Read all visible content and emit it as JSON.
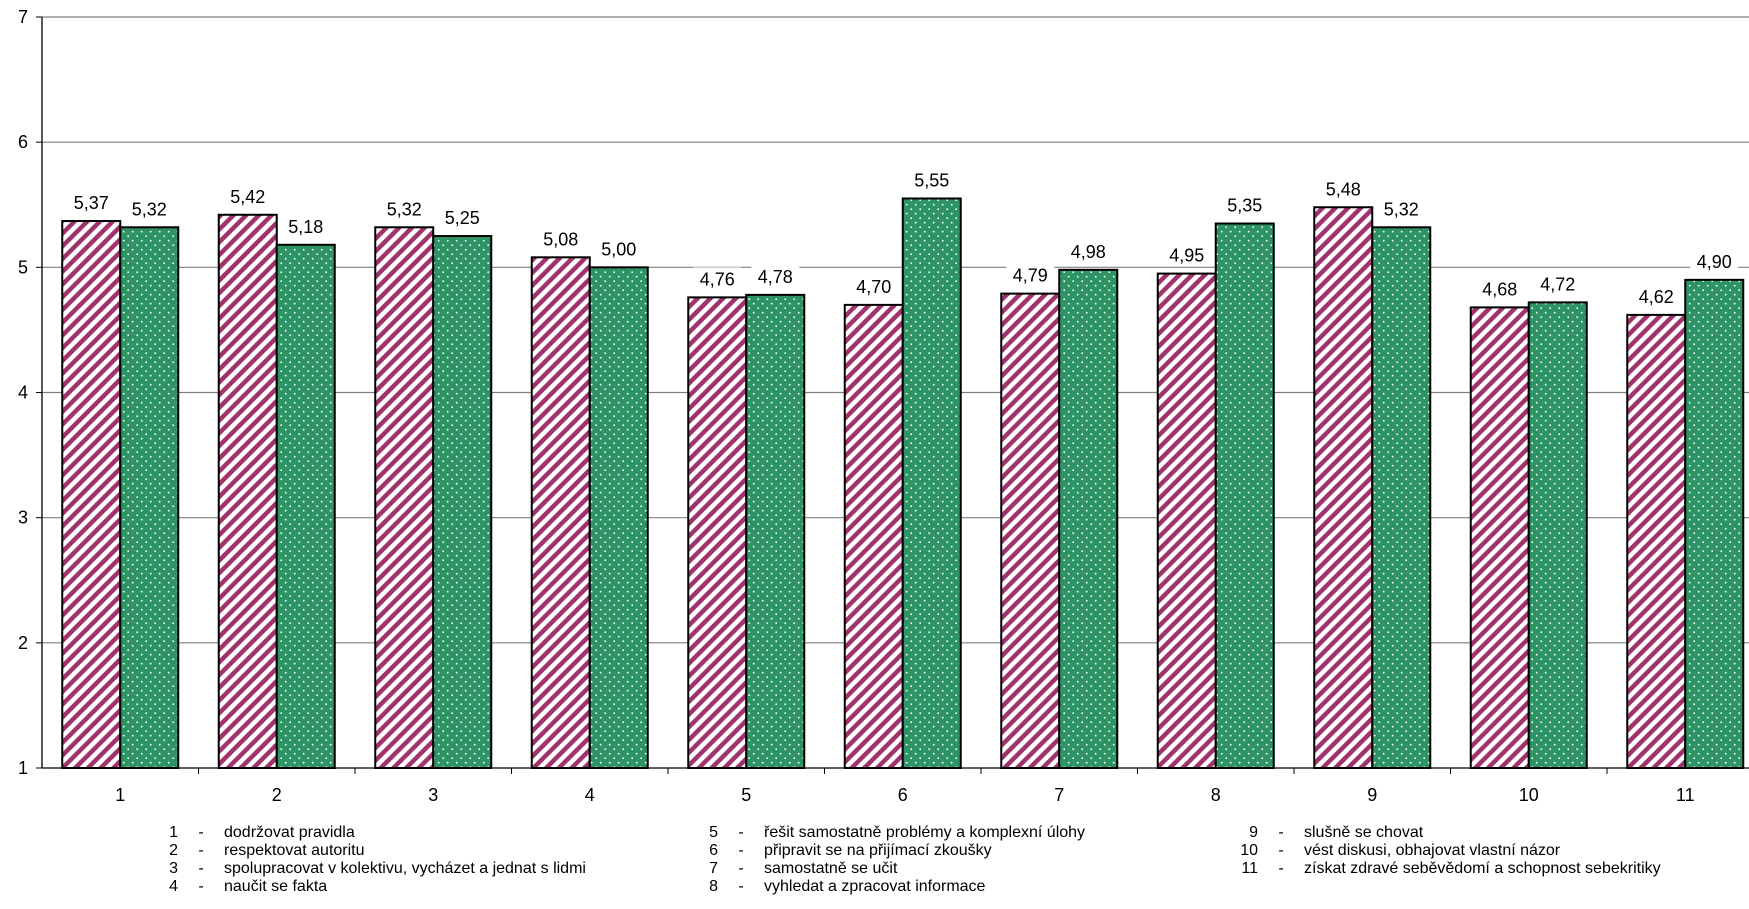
{
  "chart_data": {
    "type": "bar",
    "title": "",
    "xlabel": "",
    "ylabel": "",
    "ylim": [
      1,
      7
    ],
    "yticks": [
      "1",
      "2",
      "3",
      "4",
      "5",
      "6",
      "7"
    ],
    "grid": true,
    "categories": [
      "1",
      "2",
      "3",
      "4",
      "5",
      "6",
      "7",
      "8",
      "9",
      "10",
      "11"
    ],
    "series": [
      {
        "values": [
          5.37,
          5.42,
          5.32,
          5.08,
          4.76,
          4.7,
          4.79,
          4.95,
          5.48,
          4.68,
          4.62
        ],
        "labels": [
          "5,37",
          "5,42",
          "5,32",
          "5,08",
          "4,76",
          "4,70",
          "4,79",
          "4,95",
          "5,48",
          "4,68",
          "4,62"
        ],
        "color": "#a0336e",
        "pattern": "diagonal-stripes"
      },
      {
        "values": [
          5.32,
          5.18,
          5.25,
          5.0,
          4.78,
          5.55,
          4.98,
          5.35,
          5.32,
          4.72,
          4.9
        ],
        "labels": [
          "5,32",
          "5,18",
          "5,25",
          "5,00",
          "4,78",
          "5,55",
          "4,98",
          "5,35",
          "5,32",
          "4,72",
          "4,90"
        ],
        "color": "#2e9466",
        "pattern": "dots"
      }
    ],
    "legend": {
      "placement": "bottom",
      "separator": "-",
      "columns": [
        [
          {
            "num": "1",
            "text": "dodržovat pravidla"
          },
          {
            "num": "2",
            "text": "respektovat autoritu"
          },
          {
            "num": "3",
            "text": "spolupracovat v kolektivu, vycházet a jednat s lidmi"
          },
          {
            "num": "4",
            "text": "naučit se fakta"
          }
        ],
        [
          {
            "num": "5",
            "text": "řešit samostatně problémy a komplexní úlohy"
          },
          {
            "num": "6",
            "text": "připravit se na přijímací zkoušky"
          },
          {
            "num": "7",
            "text": "samostatně se učit"
          },
          {
            "num": "8",
            "text": "vyhledat a zpracovat informace"
          }
        ],
        [
          {
            "num": "9",
            "text": "slušně se chovat"
          },
          {
            "num": "10",
            "text": "vést diskusi, obhajovat vlastní názor"
          },
          {
            "num": "11",
            "text": "získat zdravé seběvědomí a schopnost sebekritiky"
          }
        ]
      ]
    }
  }
}
